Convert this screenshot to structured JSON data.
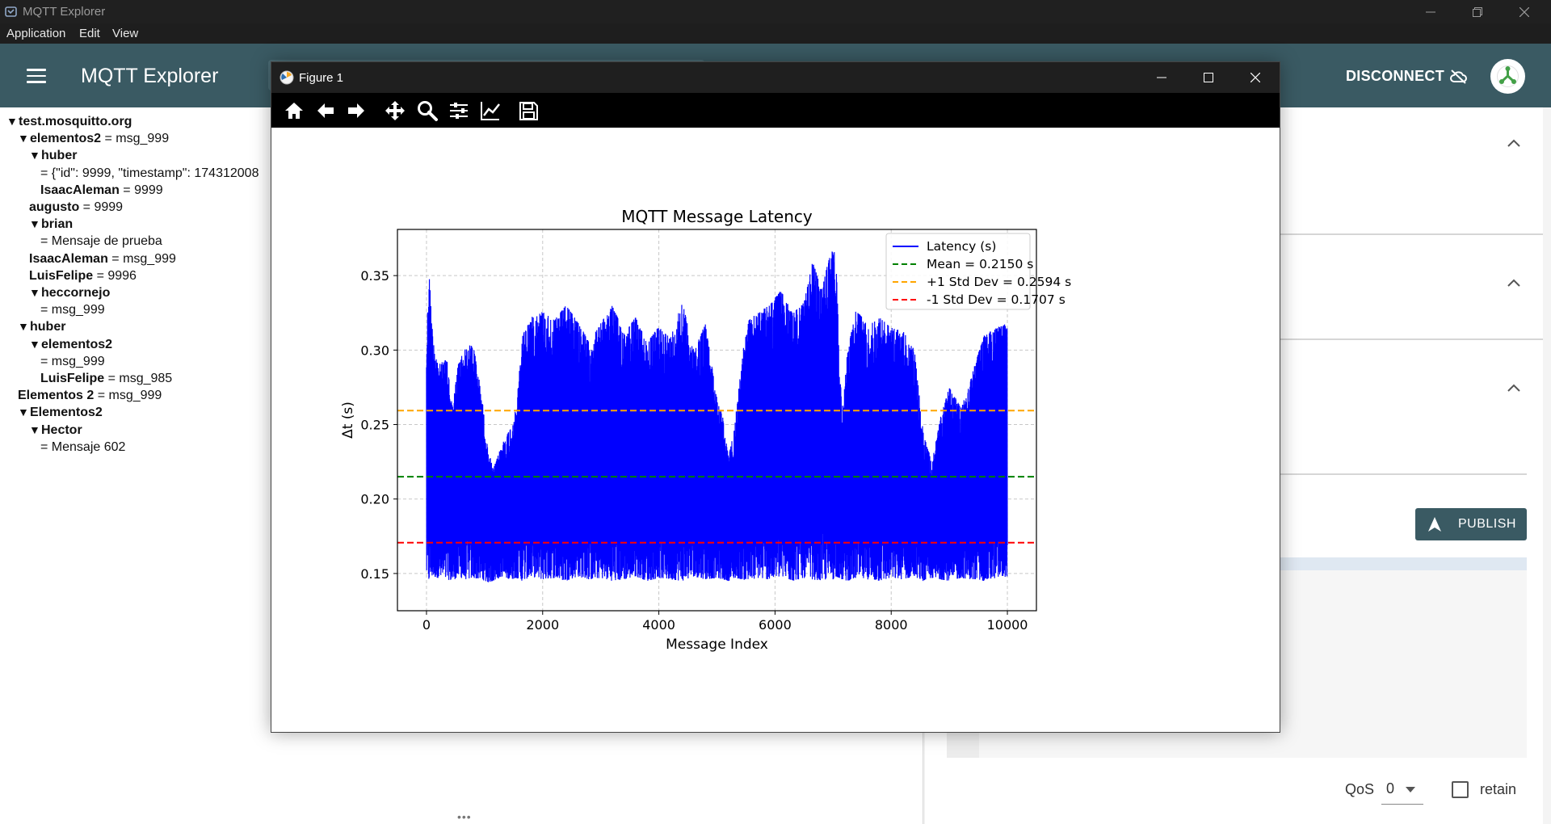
{
  "window": {
    "title": "MQTT Explorer",
    "icon": "mqtt-explorer-app-icon"
  },
  "menu": {
    "items": [
      "Application",
      "Edit",
      "View"
    ]
  },
  "header": {
    "title": "MQTT Explorer",
    "disconnect_label": "DISCONNECT",
    "icons": [
      "hamburger-menu-icon",
      "cloud-off-icon",
      "avatar-icon"
    ],
    "accent_color": "#3a5a63"
  },
  "tree": {
    "nodes": [
      {
        "indent": 0,
        "expanded": true,
        "key": "test.mosquitto.org",
        "value": ""
      },
      {
        "indent": 1,
        "expanded": true,
        "key": "elementos2",
        "value": "msg_999"
      },
      {
        "indent": 2,
        "expanded": true,
        "key": "huber",
        "value": ""
      },
      {
        "indent": 3,
        "expanded": null,
        "key": "",
        "value": "{\"id\": 9999, \"timestamp\": 174312008"
      },
      {
        "indent": 3,
        "expanded": null,
        "key": "IsaacAleman",
        "value": "9999"
      },
      {
        "indent": 2,
        "expanded": null,
        "key": "augusto",
        "value": "9999"
      },
      {
        "indent": 2,
        "expanded": true,
        "key": "brian",
        "value": ""
      },
      {
        "indent": 3,
        "expanded": null,
        "key": "",
        "value": "Mensaje de prueba"
      },
      {
        "indent": 2,
        "expanded": null,
        "key": "IsaacAleman",
        "value": "msg_999"
      },
      {
        "indent": 2,
        "expanded": null,
        "key": "LuisFelipe",
        "value": "9996"
      },
      {
        "indent": 2,
        "expanded": true,
        "key": "heccornejo",
        "value": ""
      },
      {
        "indent": 3,
        "expanded": null,
        "key": "",
        "value": "msg_999"
      },
      {
        "indent": 1,
        "expanded": true,
        "key": "huber",
        "value": ""
      },
      {
        "indent": 2,
        "expanded": true,
        "key": "elementos2",
        "value": ""
      },
      {
        "indent": 3,
        "expanded": null,
        "key": "",
        "value": "msg_999"
      },
      {
        "indent": 3,
        "expanded": null,
        "key": "LuisFelipe",
        "value": "msg_985"
      },
      {
        "indent": 1,
        "expanded": null,
        "key": "Elementos 2",
        "value": "msg_999"
      },
      {
        "indent": 1,
        "expanded": true,
        "key": "Elementos2",
        "value": ""
      },
      {
        "indent": 2,
        "expanded": true,
        "key": "Hector",
        "value": ""
      },
      {
        "indent": 3,
        "expanded": null,
        "key": "",
        "value": "Mensaje 602"
      }
    ]
  },
  "right_panel": {
    "publish_label": "PUBLISH",
    "qos_label": "QoS",
    "qos_value": "0",
    "retain_label": "retain",
    "retain_checked": false,
    "icons": [
      "chevron-up-icon",
      "send-arrow-icon",
      "dropdown-caret-icon"
    ]
  },
  "figure": {
    "title": "Figure 1",
    "toolbar": [
      "home-icon",
      "back-arrow-icon",
      "forward-arrow-icon",
      "pan-icon",
      "zoom-icon",
      "subplots-icon",
      "edit-axis-icon",
      "save-icon"
    ]
  },
  "chart_data": {
    "type": "line",
    "title": "MQTT Message Latency",
    "xlabel": "Message Index",
    "ylabel": "Δt (s)",
    "xlim": [
      -500,
      10500
    ],
    "ylim": [
      0.125,
      0.381
    ],
    "xticks": [
      0,
      2000,
      4000,
      6000,
      8000,
      10000
    ],
    "yticks": [
      0.15,
      0.2,
      0.25,
      0.3,
      0.35
    ],
    "ytick_labels": [
      "0.15",
      "0.20",
      "0.25",
      "0.30",
      "0.35"
    ],
    "grid": true,
    "legend_position": "top-right",
    "series": [
      {
        "name": "Latency (s)",
        "style": "solid",
        "color": "#0000ff",
        "x_range": [
          0,
          9999
        ],
        "envelope_x": [
          0,
          40,
          100,
          200,
          350,
          450,
          550,
          650,
          800,
          950,
          1050,
          1150,
          1300,
          1450,
          1550,
          1650,
          1800,
          2000,
          2200,
          2400,
          2600,
          2800,
          3000,
          3200,
          3400,
          3600,
          3800,
          4000,
          4200,
          4400,
          4600,
          4800,
          5000,
          5100,
          5200,
          5300,
          5450,
          5550,
          5700,
          5900,
          6100,
          6300,
          6500,
          6650,
          6800,
          6950,
          7000,
          7050,
          7150,
          7250,
          7400,
          7600,
          7800,
          8000,
          8200,
          8400,
          8550,
          8700,
          8850,
          9000,
          9200,
          9400,
          9600,
          9800,
          9999
        ],
        "upper": [
          0.3,
          0.356,
          0.315,
          0.29,
          0.294,
          0.262,
          0.292,
          0.3,
          0.305,
          0.27,
          0.235,
          0.22,
          0.237,
          0.248,
          0.262,
          0.31,
          0.322,
          0.326,
          0.32,
          0.33,
          0.32,
          0.305,
          0.318,
          0.33,
          0.312,
          0.322,
          0.305,
          0.316,
          0.308,
          0.333,
          0.3,
          0.318,
          0.268,
          0.255,
          0.228,
          0.248,
          0.3,
          0.32,
          0.325,
          0.33,
          0.34,
          0.325,
          0.332,
          0.36,
          0.34,
          0.365,
          0.37,
          0.36,
          0.258,
          0.3,
          0.328,
          0.316,
          0.322,
          0.315,
          0.313,
          0.3,
          0.245,
          0.225,
          0.255,
          0.275,
          0.262,
          0.285,
          0.31,
          0.315,
          0.318
        ],
        "lower": [
          0.15,
          0.145,
          0.148,
          0.147,
          0.146,
          0.145,
          0.148,
          0.146,
          0.147,
          0.146,
          0.144,
          0.145,
          0.148,
          0.146,
          0.147,
          0.145,
          0.148,
          0.146,
          0.147,
          0.145,
          0.148,
          0.146,
          0.147,
          0.145,
          0.146,
          0.148,
          0.145,
          0.147,
          0.146,
          0.145,
          0.148,
          0.146,
          0.147,
          0.146,
          0.145,
          0.147,
          0.146,
          0.145,
          0.147,
          0.146,
          0.148,
          0.145,
          0.147,
          0.146,
          0.145,
          0.147,
          0.146,
          0.148,
          0.146,
          0.145,
          0.147,
          0.146,
          0.145,
          0.147,
          0.146,
          0.148,
          0.145,
          0.147,
          0.146,
          0.145,
          0.147,
          0.146,
          0.145,
          0.147,
          0.148
        ]
      },
      {
        "name": "Mean = 0.2150 s",
        "style": "dashed",
        "color": "#008000",
        "value": 0.215
      },
      {
        "name": "+1 Std Dev = 0.2594 s",
        "style": "dashed",
        "color": "#ffa500",
        "value": 0.2594
      },
      {
        "name": "-1 Std Dev = 0.1707 s",
        "style": "dashed",
        "color": "#ff0000",
        "value": 0.1707
      }
    ]
  }
}
